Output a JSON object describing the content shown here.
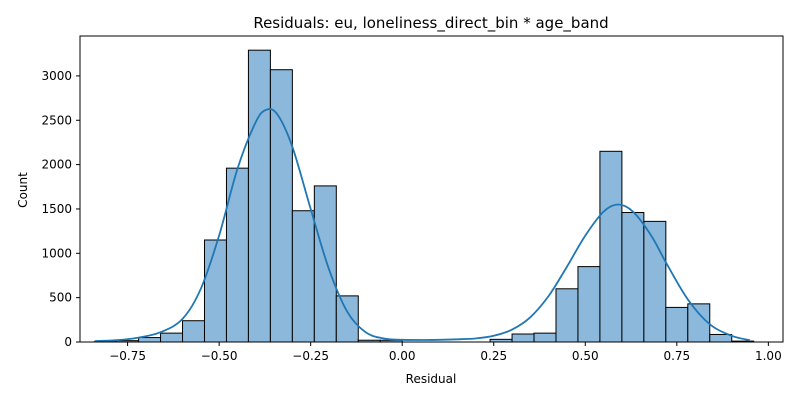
{
  "chart_data": {
    "type": "histogram",
    "title": "Residuals: eu, loneliness_direct_bin * age_band",
    "xlabel": "Residual",
    "ylabel": "Count",
    "xlim": [
      -0.88,
      1.04
    ],
    "ylim": [
      0,
      3450
    ],
    "x_ticks": [
      -0.75,
      -0.5,
      -0.25,
      0.0,
      0.25,
      0.5,
      0.75,
      1.0
    ],
    "x_tick_labels": [
      "−0.75",
      "−0.50",
      "−0.25",
      "0.00",
      "0.25",
      "0.50",
      "0.75",
      "1.00"
    ],
    "y_ticks": [
      0,
      500,
      1000,
      1500,
      2000,
      2500,
      3000
    ],
    "y_tick_labels": [
      "0",
      "500",
      "1000",
      "1500",
      "2000",
      "2500",
      "3000"
    ],
    "bin_width": 0.06,
    "bins": [
      {
        "x0": -0.84,
        "x1": -0.78,
        "count": 5
      },
      {
        "x0": -0.78,
        "x1": -0.72,
        "count": 15
      },
      {
        "x0": -0.72,
        "x1": -0.66,
        "count": 50
      },
      {
        "x0": -0.66,
        "x1": -0.6,
        "count": 100
      },
      {
        "x0": -0.6,
        "x1": -0.54,
        "count": 240
      },
      {
        "x0": -0.54,
        "x1": -0.48,
        "count": 1150
      },
      {
        "x0": -0.48,
        "x1": -0.42,
        "count": 1960
      },
      {
        "x0": -0.42,
        "x1": -0.36,
        "count": 3290
      },
      {
        "x0": -0.36,
        "x1": -0.3,
        "count": 3070
      },
      {
        "x0": -0.3,
        "x1": -0.24,
        "count": 1480
      },
      {
        "x0": -0.24,
        "x1": -0.18,
        "count": 1760
      },
      {
        "x0": -0.18,
        "x1": -0.12,
        "count": 520
      },
      {
        "x0": -0.12,
        "x1": -0.06,
        "count": 20
      },
      {
        "x0": -0.06,
        "x1": 0.0,
        "count": 20
      },
      {
        "x0": 0.24,
        "x1": 0.3,
        "count": 30
      },
      {
        "x0": 0.3,
        "x1": 0.36,
        "count": 90
      },
      {
        "x0": 0.36,
        "x1": 0.42,
        "count": 100
      },
      {
        "x0": 0.42,
        "x1": 0.48,
        "count": 600
      },
      {
        "x0": 0.48,
        "x1": 0.54,
        "count": 850
      },
      {
        "x0": 0.54,
        "x1": 0.6,
        "count": 2150
      },
      {
        "x0": 0.6,
        "x1": 0.66,
        "count": 1460
      },
      {
        "x0": 0.66,
        "x1": 0.72,
        "count": 1360
      },
      {
        "x0": 0.72,
        "x1": 0.78,
        "count": 390
      },
      {
        "x0": 0.78,
        "x1": 0.84,
        "count": 430
      },
      {
        "x0": 0.84,
        "x1": 0.9,
        "count": 85
      },
      {
        "x0": 0.9,
        "x1": 0.96,
        "count": 10
      }
    ],
    "kde": {
      "x": [
        -0.84,
        -0.78,
        -0.72,
        -0.66,
        -0.6,
        -0.55,
        -0.5,
        -0.45,
        -0.4,
        -0.37,
        -0.34,
        -0.3,
        -0.25,
        -0.2,
        -0.15,
        -0.1,
        -0.05,
        0.0,
        0.05,
        0.1,
        0.15,
        0.2,
        0.25,
        0.3,
        0.35,
        0.4,
        0.45,
        0.5,
        0.55,
        0.59,
        0.63,
        0.68,
        0.72,
        0.78,
        0.84,
        0.9,
        0.95
      ],
      "y": [
        10,
        20,
        50,
        110,
        260,
        600,
        1200,
        1950,
        2480,
        2620,
        2560,
        2200,
        1500,
        820,
        340,
        110,
        40,
        25,
        22,
        25,
        30,
        40,
        70,
        140,
        280,
        520,
        850,
        1200,
        1470,
        1550,
        1470,
        1200,
        900,
        480,
        200,
        70,
        20
      ]
    },
    "bar_fill": "#8bb8db",
    "bar_edge": "#000000",
    "kde_color": "#1f77b4",
    "grid": false,
    "legend": "none"
  }
}
